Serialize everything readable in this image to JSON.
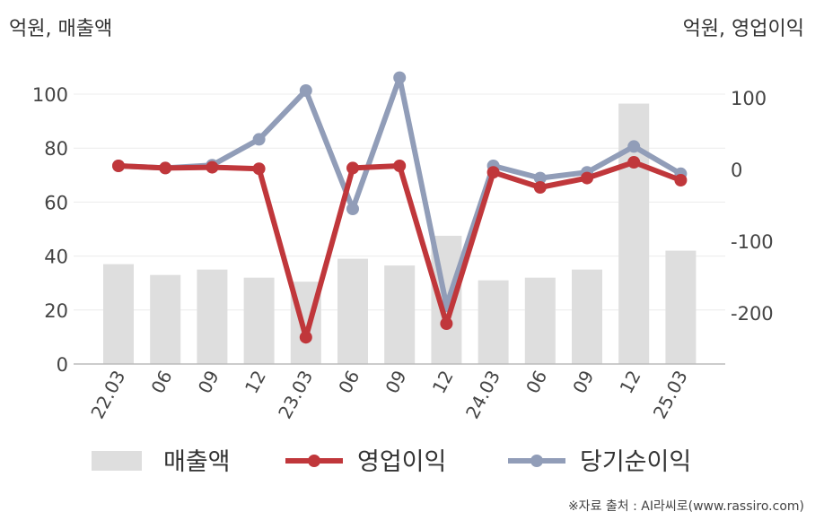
{
  "left_unit": "억원, 매출액",
  "right_unit": "억원, 영업이익",
  "source": "※자료 출처 : AI라씨로(www.rassiro.com)",
  "chart_data": {
    "type": "bar+line",
    "categories": [
      "22.03",
      "06",
      "09",
      "12",
      "23.03",
      "06",
      "09",
      "12",
      "24.03",
      "06",
      "09",
      "12",
      "25.03"
    ],
    "left_axis": {
      "ylim": [
        0,
        100
      ],
      "ticks": [
        0,
        20,
        40,
        60,
        80,
        100
      ]
    },
    "right_axis": {
      "ylim": [
        -270,
        150
      ],
      "ticks": [
        -200,
        -100,
        0,
        100
      ]
    },
    "grid": true,
    "legend_position": "bottom",
    "series": [
      {
        "name": "매출액",
        "type": "bar",
        "axis": "left",
        "color": "#dedede",
        "values": [
          37,
          33,
          35,
          32,
          30.5,
          39,
          36.5,
          47.5,
          31,
          32,
          35,
          96.5,
          42
        ]
      },
      {
        "name": "영업이익",
        "type": "line",
        "axis": "right",
        "color": "#c0373b",
        "values": [
          5,
          2,
          3,
          1,
          -234,
          2,
          5,
          -215,
          -4,
          -25,
          -12,
          10,
          -15
        ]
      },
      {
        "name": "당기순이익",
        "type": "line",
        "axis": "right",
        "color": "#919db8",
        "values": [
          5,
          2,
          6,
          42,
          110,
          -55,
          128,
          -190,
          5,
          -12,
          -4,
          32,
          -6
        ]
      }
    ]
  }
}
